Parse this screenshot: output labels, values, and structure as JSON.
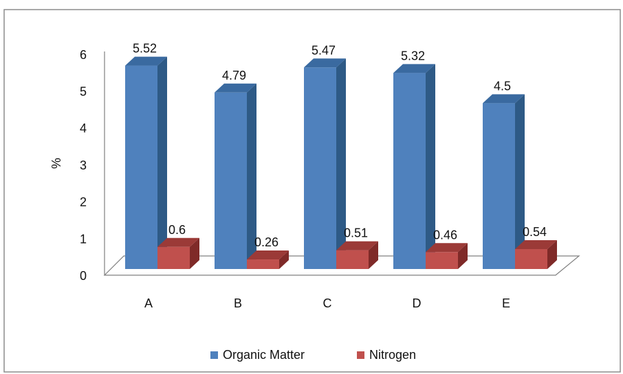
{
  "chart_data": {
    "type": "bar",
    "categories": [
      "A",
      "B",
      "C",
      "D",
      "E"
    ],
    "series": [
      {
        "name": "Organic Matter",
        "values": [
          5.52,
          4.79,
          5.47,
          5.32,
          4.5
        ],
        "color": "#4F81BD",
        "side_color": "#2E5A86",
        "top_color": "#3A6AA0"
      },
      {
        "name": "Nitrogen",
        "values": [
          0.6,
          0.26,
          0.51,
          0.46,
          0.54
        ],
        "color": "#C0504D",
        "side_color": "#7F2A28",
        "top_color": "#9B3A37"
      }
    ],
    "data_labels": [
      [
        "5.52",
        "4.79",
        "5.47",
        "5.32",
        "4.5"
      ],
      [
        "0.6",
        "0.26",
        "0.51",
        "0.46",
        "0.54"
      ]
    ],
    "ylabel": "%",
    "yticks": [
      "0",
      "1",
      "2",
      "3",
      "4",
      "5",
      "6"
    ],
    "ylim": [
      0,
      6
    ],
    "grid": false,
    "legend_position": "bottom",
    "style": "3d-clustered-column"
  }
}
